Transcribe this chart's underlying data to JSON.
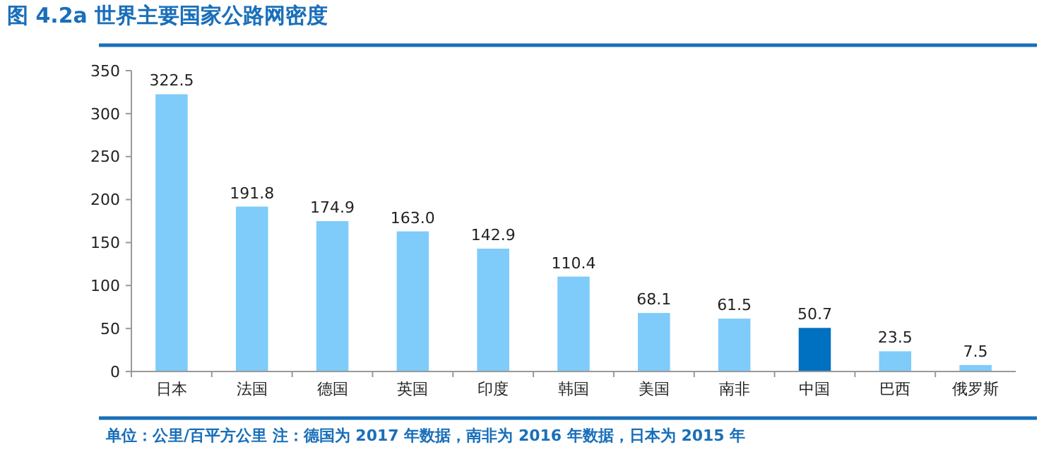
{
  "chart_data": {
    "type": "bar",
    "title": "图 4.2a  世界主要国家公路网密度",
    "categories": [
      "日本",
      "法国",
      "德国",
      "英国",
      "印度",
      "韩国",
      "美国",
      "南非",
      "中国",
      "巴西",
      "俄罗斯"
    ],
    "values": [
      322.5,
      191.8,
      174.9,
      163.0,
      142.9,
      110.4,
      68.1,
      61.5,
      50.7,
      23.5,
      7.5
    ],
    "value_labels": [
      "322.5",
      "191.8",
      "174.9",
      "163.0",
      "142.9",
      "110.4",
      "68.1",
      "61.5",
      "50.7",
      "23.5",
      "7.5"
    ],
    "colors": [
      "#7fcbfa",
      "#7fcbfa",
      "#7fcbfa",
      "#7fcbfa",
      "#7fcbfa",
      "#7fcbfa",
      "#7fcbfa",
      "#7fcbfa",
      "#0070c0",
      "#7fcbfa",
      "#7fcbfa"
    ],
    "ylim": [
      0,
      350
    ],
    "yticks": [
      0,
      50,
      100,
      150,
      200,
      250,
      300,
      350
    ],
    "grid": false,
    "annotations": [
      "单位：公里/百平方公里  注：德国为 2017 年数据，南非为 2016 年数据，日本为 2015 年"
    ]
  }
}
